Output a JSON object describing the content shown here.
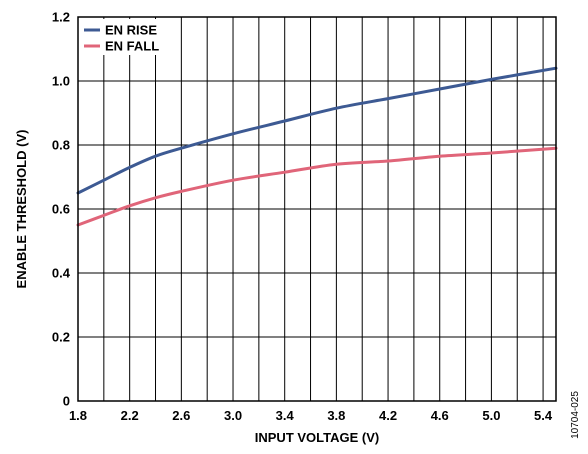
{
  "chart_data": {
    "type": "line",
    "xlabel": "INPUT VOLTAGE (V)",
    "ylabel": "ENABLE THRESHOLD (V)",
    "xlim": [
      1.8,
      5.5
    ],
    "ylim": [
      0,
      1.2
    ],
    "x_ticks": [
      1.8,
      2.2,
      2.6,
      3.0,
      3.4,
      3.8,
      4.2,
      4.6,
      5.0,
      5.4
    ],
    "x_tick_labels": [
      "1.8",
      "2.2",
      "2.6",
      "3.0",
      "3.4",
      "3.8",
      "4.2",
      "4.6",
      "5.0",
      "5.4"
    ],
    "y_ticks": [
      0,
      0.2,
      0.4,
      0.6,
      0.8,
      1.0,
      1.2
    ],
    "y_tick_labels": [
      "0",
      "0.2",
      "0.4",
      "0.6",
      "0.8",
      "1.0",
      "1.2"
    ],
    "x_minor_step": 0.2,
    "grid": true,
    "legend_position": "top-left",
    "series": [
      {
        "name": "EN RISE",
        "color": "#3d5a93",
        "x": [
          1.8,
          2.0,
          2.2,
          2.4,
          2.6,
          3.0,
          3.4,
          3.8,
          4.2,
          4.6,
          5.0,
          5.5
        ],
        "values": [
          0.65,
          0.69,
          0.73,
          0.765,
          0.79,
          0.835,
          0.875,
          0.915,
          0.945,
          0.975,
          1.005,
          1.04
        ]
      },
      {
        "name": "EN FALL",
        "color": "#e06579",
        "x": [
          1.8,
          2.0,
          2.2,
          2.4,
          2.6,
          3.0,
          3.4,
          3.8,
          4.2,
          4.6,
          5.0,
          5.5
        ],
        "values": [
          0.55,
          0.58,
          0.61,
          0.635,
          0.655,
          0.69,
          0.715,
          0.74,
          0.75,
          0.765,
          0.775,
          0.79
        ]
      }
    ]
  },
  "figure_id": "10704-025"
}
